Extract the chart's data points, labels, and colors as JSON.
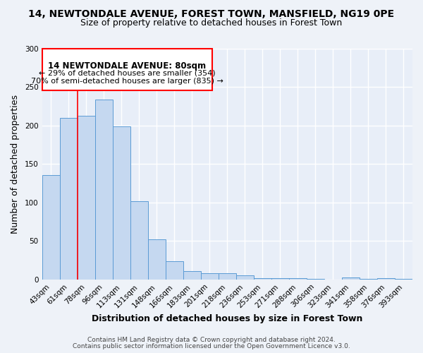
{
  "title": "14, NEWTONDALE AVENUE, FOREST TOWN, MANSFIELD, NG19 0PE",
  "subtitle": "Size of property relative to detached houses in Forest Town",
  "xlabel": "Distribution of detached houses by size in Forest Town",
  "ylabel": "Number of detached properties",
  "categories": [
    "43sqm",
    "61sqm",
    "78sqm",
    "96sqm",
    "113sqm",
    "131sqm",
    "148sqm",
    "166sqm",
    "183sqm",
    "201sqm",
    "218sqm",
    "236sqm",
    "253sqm",
    "271sqm",
    "288sqm",
    "306sqm",
    "323sqm",
    "341sqm",
    "358sqm",
    "376sqm",
    "393sqm"
  ],
  "values": [
    136,
    210,
    213,
    234,
    199,
    102,
    52,
    24,
    11,
    8,
    8,
    5,
    2,
    2,
    2,
    1,
    0,
    3,
    1,
    2,
    1
  ],
  "bar_color": "#c5d8f0",
  "bar_edge_color": "#5b9bd5",
  "red_line_x": 1.5,
  "annotation_title": "14 NEWTONDALE AVENUE: 80sqm",
  "annotation_line1": "← 29% of detached houses are smaller (354)",
  "annotation_line2": "70% of semi-detached houses are larger (835) →",
  "ylim": [
    0,
    300
  ],
  "yticks": [
    0,
    50,
    100,
    150,
    200,
    250,
    300
  ],
  "footer_line1": "Contains HM Land Registry data © Crown copyright and database right 2024.",
  "footer_line2": "Contains public sector information licensed under the Open Government Licence v3.0.",
  "bg_color": "#eef2f8",
  "plot_bg_color": "#e8eef8",
  "title_fontsize": 10,
  "subtitle_fontsize": 9,
  "axis_label_fontsize": 9,
  "tick_fontsize": 7.5,
  "footer_fontsize": 6.5,
  "annot_fontsize": 8.5
}
